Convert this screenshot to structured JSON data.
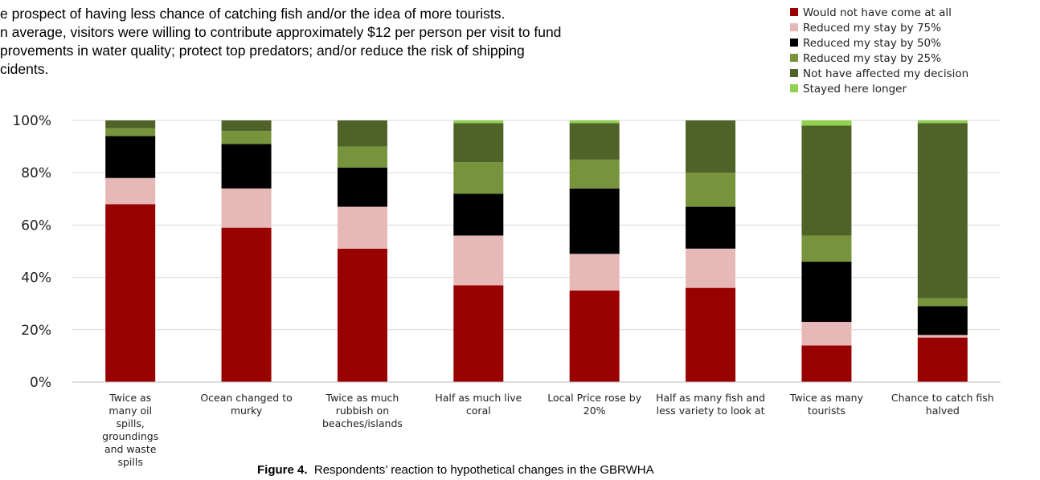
{
  "intro_lines": [
    "e prospect of having less chance of catching fish and/or the idea of more tourists.",
    "n average, visitors were willing to contribute approximately $12 per person per visit to fund",
    "provements in water quality; protect top predators; and/or reduce the risk  of shipping",
    "cidents."
  ],
  "caption": {
    "label": "Figure 4.",
    "text": "Respondents’ reaction to hypothetical changes in the GBRWHA"
  },
  "chart_data": {
    "type": "bar",
    "stacked": true,
    "ylim": [
      0,
      100
    ],
    "yticks": [
      "0%",
      "20%",
      "40%",
      "60%",
      "80%",
      "100%"
    ],
    "grid": true,
    "legend_position": "top-right",
    "categories": [
      [
        "Twice as",
        "many oil",
        "spills,",
        "groundings",
        "and waste",
        "spills"
      ],
      [
        "Ocean changed to",
        "murky"
      ],
      [
        "Twice as much",
        "rubbish on",
        "beaches/islands"
      ],
      [
        "Half as much live",
        "coral"
      ],
      [
        "Local Price rose by",
        "20%"
      ],
      [
        "Half as many fish and",
        "less variety to look at"
      ],
      [
        "Twice as many",
        "tourists"
      ],
      [
        "Chance to catch fish",
        "halved"
      ]
    ],
    "series": [
      {
        "name": "Would not have come at all",
        "color": "#990000",
        "values": [
          68,
          59,
          51,
          37,
          35,
          36,
          14,
          17
        ]
      },
      {
        "name": "Reduced my stay by 75%",
        "color": "#e6b8b7",
        "values": [
          10,
          15,
          16,
          19,
          14,
          15,
          9,
          1
        ]
      },
      {
        "name": "Reduced my stay by 50%",
        "color": "#000000",
        "values": [
          16,
          17,
          15,
          16,
          25,
          16,
          23,
          11
        ]
      },
      {
        "name": "Reduced my stay by 25%",
        "color": "#77933c",
        "values": [
          3,
          5,
          8,
          12,
          11,
          13,
          10,
          3
        ]
      },
      {
        "name": "Not have affected my decision",
        "color": "#4f6228",
        "values": [
          3,
          4,
          10,
          15,
          14,
          20,
          42,
          67
        ]
      },
      {
        "name": "Stayed here longer",
        "color": "#92d050",
        "values": [
          0,
          0,
          0,
          1,
          1,
          0,
          2,
          1
        ]
      }
    ]
  }
}
